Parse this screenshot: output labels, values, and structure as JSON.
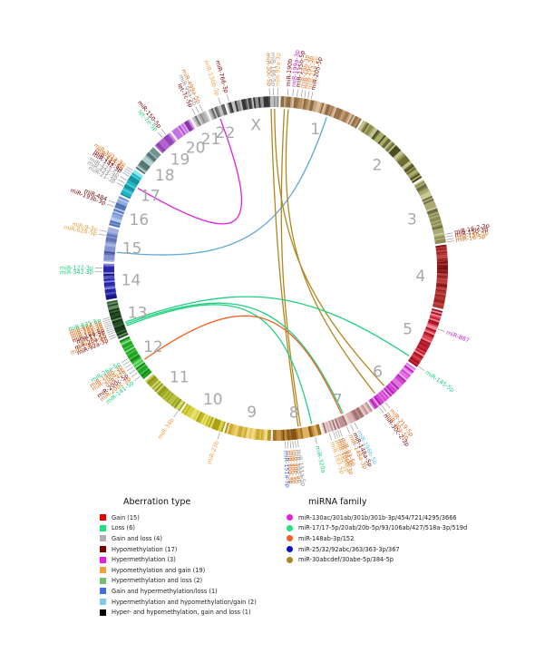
{
  "diagram": {
    "chromosomes": [
      {
        "id": "1",
        "size": 248,
        "colors": [
          "#c8a27a",
          "#a07850",
          "#8a6a40",
          "#b89060",
          "#d8c0a0"
        ]
      },
      {
        "id": "2",
        "size": 242,
        "colors": [
          "#8a8a4a",
          "#6a6a30",
          "#a8a868",
          "#c0c090",
          "#4a4a20"
        ]
      },
      {
        "id": "3",
        "size": 198,
        "colors": [
          "#a8a870",
          "#8a8a50",
          "#c8c898",
          "#6a6a40"
        ]
      },
      {
        "id": "4",
        "size": 190,
        "colors": [
          "#7a1010",
          "#9a2020",
          "#c04040",
          "#b03030"
        ]
      },
      {
        "id": "5",
        "size": 181,
        "colors": [
          "#c02030",
          "#e04050",
          "#a01020",
          "#f08090"
        ]
      },
      {
        "id": "6",
        "size": 171,
        "colors": [
          "#d040d0",
          "#e070e0",
          "#b020b0",
          "#f0a0f0"
        ]
      },
      {
        "id": "7",
        "size": 159,
        "colors": [
          "#d8b0b0",
          "#c09090",
          "#e8d0d0",
          "#a07070"
        ]
      },
      {
        "id": "8",
        "size": 145,
        "colors": [
          "#c89040",
          "#a07020",
          "#e0b060",
          "#805010"
        ]
      },
      {
        "id": "9",
        "size": 138,
        "colors": [
          "#e0c050",
          "#c8a830",
          "#f0d880",
          "#b09020"
        ]
      },
      {
        "id": "10",
        "size": 134,
        "colors": [
          "#d8d040",
          "#c0b820",
          "#e8e070",
          "#a8a010"
        ]
      },
      {
        "id": "11",
        "size": 135,
        "colors": [
          "#b8c040",
          "#a0a820",
          "#d0d870",
          "#88901a"
        ]
      },
      {
        "id": "12",
        "size": 133,
        "colors": [
          "#40c040",
          "#20a020",
          "#80e080",
          "#108010"
        ]
      },
      {
        "id": "13",
        "size": 114,
        "colors": [
          "#306030",
          "#204820",
          "#608860",
          "#103010"
        ]
      },
      {
        "id": "14",
        "size": 107,
        "colors": [
          "#2020a0",
          "#101080",
          "#5050c0",
          "#8080e0"
        ]
      },
      {
        "id": "15",
        "size": 102,
        "colors": [
          "#8090d0",
          "#6070b0",
          "#a0b0e0",
          "#4050a0"
        ]
      },
      {
        "id": "16",
        "size": 90,
        "colors": [
          "#90a8e0",
          "#7090d0",
          "#b0c8f0",
          "#5070b0"
        ]
      },
      {
        "id": "17",
        "size": 83,
        "colors": [
          "#40d0e0",
          "#20b0c0",
          "#80e8f0",
          "#10909a"
        ]
      },
      {
        "id": "18",
        "size": 80,
        "colors": [
          "#90b0b0",
          "#709090",
          "#b0d0d0",
          "#507070"
        ]
      },
      {
        "id": "19",
        "size": 59,
        "colors": [
          "#b060d0",
          "#9040b0",
          "#d090e8",
          "#702090"
        ]
      },
      {
        "id": "20",
        "size": 64,
        "colors": [
          "#c070e0",
          "#a050c0",
          "#e0a0f0",
          "#8030a0"
        ]
      },
      {
        "id": "21",
        "size": 47,
        "colors": [
          "#b0b0b0",
          "#909090",
          "#d0d0d0",
          "#707070"
        ]
      },
      {
        "id": "22",
        "size": 51,
        "colors": [
          "#a0a0a0",
          "#808080",
          "#c0c0c0",
          "#606060"
        ]
      },
      {
        "id": "X",
        "size": 156,
        "colors": [
          "#909090",
          "#505050",
          "#c0c0c0",
          "#303030"
        ]
      }
    ],
    "mirna_labels": [
      {
        "chr": "X",
        "pos": 0.06,
        "text": "miR-766-3p",
        "color": "#7a0000"
      },
      {
        "chr": "X",
        "pos": 0.83,
        "text": "miR-30c-5p",
        "color": "#e07020"
      },
      {
        "chr": "X",
        "pos": 0.9,
        "text": "miR-186-5p",
        "color": "#909090"
      },
      {
        "chr": "X",
        "pos": 0.98,
        "text": "miR-92a-3p",
        "color": "#f0a040"
      },
      {
        "chr": "1",
        "pos": 0.08,
        "text": "miR-190b",
        "color": "#7a0000"
      },
      {
        "chr": "1",
        "pos": 0.14,
        "text": "miR-199a-3p",
        "color": "#d020d0"
      },
      {
        "chr": "1",
        "pos": 0.19,
        "text": "miR-135b-5p",
        "color": "#7a0000"
      },
      {
        "chr": "1",
        "pos": 0.24,
        "text": "miR-29b-3p",
        "color": "#e07020"
      },
      {
        "chr": "1",
        "pos": 0.28,
        "text": "miR-29c-3p",
        "color": "#e07020"
      },
      {
        "chr": "1",
        "pos": 0.32,
        "text": "miR-214-5p",
        "color": "#f0a040"
      },
      {
        "chr": "1",
        "pos": 0.36,
        "text": "miR-205-5p",
        "color": "#7a0000"
      },
      {
        "chr": "3",
        "pos": 0.88,
        "text": "miR-16-2-3p",
        "color": "#7a0000"
      },
      {
        "chr": "3",
        "pos": 0.92,
        "text": "miR-15b-3p",
        "color": "#7a0000"
      },
      {
        "chr": "3",
        "pos": 0.96,
        "text": "miR-15b-5p",
        "color": "#e07020"
      },
      {
        "chr": "3",
        "pos": 0.995,
        "text": "miR-16-5p",
        "color": "#e07020"
      },
      {
        "chr": "5",
        "pos": 0.3,
        "text": "miR-887",
        "color": "#d020d0"
      },
      {
        "chr": "5",
        "pos": 0.98,
        "text": "miR-145-5p",
        "color": "#20d080"
      },
      {
        "chr": "6",
        "pos": 0.78,
        "text": "miR-219-5p",
        "color": "#e07020"
      },
      {
        "chr": "6",
        "pos": 0.86,
        "text": "miR-30a-5p",
        "color": "#e07020"
      },
      {
        "chr": "6",
        "pos": 0.91,
        "text": "miR-30c-2-3p",
        "color": "#7a0000"
      },
      {
        "chr": "7",
        "pos": 0.4,
        "text": "miR-196b-5p",
        "color": "#60c0f0"
      },
      {
        "chr": "7",
        "pos": 0.48,
        "text": "miR-148a-5p",
        "color": "#7a0000"
      },
      {
        "chr": "7",
        "pos": 0.56,
        "text": "miR-148a-3p",
        "color": "#e07020"
      },
      {
        "chr": "7",
        "pos": 0.7,
        "text": "miR-93-5p",
        "color": "#e07020"
      },
      {
        "chr": "7",
        "pos": 0.74,
        "text": "miR-93-3p",
        "color": "#e07020"
      },
      {
        "chr": "7",
        "pos": 0.78,
        "text": "miR-106b-3p",
        "color": "#e07020"
      },
      {
        "chr": "7",
        "pos": 0.82,
        "text": "miR-182-5p",
        "color": "#f0a040"
      },
      {
        "chr": "7",
        "pos": 0.9,
        "text": "miR-183-5p",
        "color": "#f0a040"
      },
      {
        "chr": "8",
        "pos": 0.14,
        "text": "miR-320a",
        "color": "#20d080"
      },
      {
        "chr": "8",
        "pos": 0.5,
        "text": "miR-151a-5p",
        "color": "#909090"
      },
      {
        "chr": "8",
        "pos": 0.55,
        "text": "miR-30d-5p",
        "color": "#909090"
      },
      {
        "chr": "8",
        "pos": 0.6,
        "text": "miR-30b-5p",
        "color": "#e07020"
      },
      {
        "chr": "8",
        "pos": 0.65,
        "text": "miR-30b-3p",
        "color": "#e07020"
      },
      {
        "chr": "8",
        "pos": 0.7,
        "text": "miR-30d-3p",
        "color": "#e07020"
      },
      {
        "chr": "8",
        "pos": 0.75,
        "text": "miR-151a-3p",
        "color": "#4060e0"
      },
      {
        "chr": "10",
        "pos": 0.05,
        "text": "miR-23b",
        "color": "#f0a040"
      },
      {
        "chr": "11",
        "pos": 0.03,
        "text": "miR-34b",
        "color": "#f0a040"
      },
      {
        "chr": "12",
        "pos": 0.1,
        "text": "miR-141-5p",
        "color": "#20d080"
      },
      {
        "chr": "12",
        "pos": 0.2,
        "text": "miR-200c-3p",
        "color": "#e07020"
      },
      {
        "chr": "12",
        "pos": 0.28,
        "text": "miR-200c-5p",
        "color": "#7a0000"
      },
      {
        "chr": "12",
        "pos": 0.36,
        "text": "miR-429",
        "color": "#e07020"
      },
      {
        "chr": "12",
        "pos": 0.43,
        "text": "miR-200a-3p",
        "color": "#e07020"
      },
      {
        "chr": "12",
        "pos": 0.5,
        "text": "miR-148b-3p",
        "color": "#e07020"
      },
      {
        "chr": "12",
        "pos": 0.57,
        "text": "miR-26a-5p",
        "color": "#20d080"
      },
      {
        "chr": "13",
        "pos": 0.08,
        "text": "miR-92a-3p",
        "color": "#7a0000"
      },
      {
        "chr": "13",
        "pos": 0.14,
        "text": "miR-19b-1-5p",
        "color": "#e07020"
      },
      {
        "chr": "13",
        "pos": 0.2,
        "text": "miR-20a-5p",
        "color": "#7a0000"
      },
      {
        "chr": "13",
        "pos": 0.25,
        "text": "miR-17-3p",
        "color": "#f0a040"
      },
      {
        "chr": "13",
        "pos": 0.3,
        "text": "miR-17-5p",
        "color": "#7a0000"
      },
      {
        "chr": "13",
        "pos": 0.35,
        "text": "miR-18a-5p",
        "color": "#7a0000"
      },
      {
        "chr": "13",
        "pos": 0.4,
        "text": "miR-19a-3p",
        "color": "#e07020"
      },
      {
        "chr": "13",
        "pos": 0.45,
        "text": "miR-20a-3p",
        "color": "#e07020"
      },
      {
        "chr": "13",
        "pos": 0.5,
        "text": "miR-19b-3p",
        "color": "#e07020"
      },
      {
        "chr": "13",
        "pos": 0.55,
        "text": "miR-624-5p",
        "color": "#e07020"
      },
      {
        "chr": "13",
        "pos": 0.6,
        "text": "miR-625-5p",
        "color": "#20d080"
      },
      {
        "chr": "14",
        "pos": 0.78,
        "text": "miR-342-3p",
        "color": "#20d080"
      },
      {
        "chr": "14",
        "pos": 0.88,
        "text": "miR-127-3p",
        "color": "#20d080"
      },
      {
        "chr": "15",
        "pos": 0.75,
        "text": "miR-628-5p",
        "color": "#f0a040"
      },
      {
        "chr": "15",
        "pos": 0.86,
        "text": "miR-9-3p",
        "color": "#f0a040"
      },
      {
        "chr": "16",
        "pos": 0.62,
        "text": "miR-193b-3p",
        "color": "#7a0000"
      },
      {
        "chr": "16",
        "pos": 0.74,
        "text": "miR-484",
        "color": "#7a0000"
      },
      {
        "chr": "17",
        "pos": 0.3,
        "text": "miR-21-3p",
        "color": "#909090"
      },
      {
        "chr": "17",
        "pos": 0.42,
        "text": "miR-423-3p",
        "color": "#909090"
      },
      {
        "chr": "17",
        "pos": 0.54,
        "text": "miR-423-5p",
        "color": "#909090"
      },
      {
        "chr": "17",
        "pos": 0.7,
        "text": "miR-142-3p",
        "color": "#7a0000"
      },
      {
        "chr": "17",
        "pos": 0.78,
        "text": "miR-142-5p",
        "color": "#7a0000"
      },
      {
        "chr": "17",
        "pos": 0.86,
        "text": "miR-454-3p",
        "color": "#e07020"
      },
      {
        "chr": "17",
        "pos": 0.94,
        "text": "miR-301a-3p",
        "color": "#e07020"
      },
      {
        "chr": "19",
        "pos": 0.55,
        "text": "let-7e-5p",
        "color": "#20d080"
      },
      {
        "chr": "19",
        "pos": 0.78,
        "text": "miR-150-5p",
        "color": "#7a0000"
      },
      {
        "chr": "21",
        "pos": 0.3,
        "text": "let-7c-5p",
        "color": "#7a0000"
      },
      {
        "chr": "21",
        "pos": 0.55,
        "text": "miR-99a-5p",
        "color": "#909090"
      },
      {
        "chr": "21",
        "pos": 0.8,
        "text": "miR-499a-5p",
        "color": "#e07020"
      },
      {
        "chr": "22",
        "pos": 0.8,
        "text": "miR-130b-3p",
        "color": "#f0a040"
      }
    ],
    "links": [
      {
        "from": [
          "22",
          0.5
        ],
        "to": [
          "17",
          0.5
        ],
        "color": "#e020e0"
      },
      {
        "from": [
          "1",
          0.6
        ],
        "to": [
          "15",
          0.3
        ],
        "color": "#60a8d8"
      },
      {
        "from": [
          "X",
          0.92
        ],
        "to": [
          "6",
          0.6
        ],
        "color": "#b08820"
      },
      {
        "from": [
          "X",
          0.85
        ],
        "to": [
          "8",
          0.45
        ],
        "color": "#b08820"
      },
      {
        "from": [
          "1",
          0.05
        ],
        "to": [
          "8",
          0.4
        ],
        "color": "#b08820"
      },
      {
        "from": [
          "1",
          0.1
        ],
        "to": [
          "6",
          0.82
        ],
        "color": "#b08820"
      },
      {
        "from": [
          "13",
          0.3
        ],
        "to": [
          "7",
          0.52
        ],
        "color": "#20d080"
      },
      {
        "from": [
          "13",
          0.25
        ],
        "to": [
          "8",
          0.15
        ],
        "color": "#20d080"
      },
      {
        "from": [
          "12",
          0.35
        ],
        "to": [
          "7",
          0.55
        ],
        "color": "#f06020"
      },
      {
        "from": [
          "13",
          0.35
        ],
        "to": [
          "5",
          0.92
        ],
        "color": "#20d080"
      }
    ]
  },
  "legend_aberration": {
    "title": "Aberration type",
    "items": [
      {
        "label": "Gain (15)",
        "color": "#e00000"
      },
      {
        "label": "Loss (6)",
        "color": "#20e080"
      },
      {
        "label": "Gain and loss (4)",
        "color": "#b0b0b0"
      },
      {
        "label": "Hypomethylation (17)",
        "color": "#7a0000"
      },
      {
        "label": "Hypermethylation (3)",
        "color": "#e020e0"
      },
      {
        "label": "Hypomethylation and gain (19)",
        "color": "#f0a040"
      },
      {
        "label": "Hypermethylation and loss (2)",
        "color": "#70c070"
      },
      {
        "label": "Gain and hypermethylation/loss (1)",
        "color": "#4070e0"
      },
      {
        "label": "Hypermethylation and hypomethylation/gain (2)",
        "color": "#80c8f0"
      },
      {
        "label": "Hyper- and hypomethylation, gain and loss (1)",
        "color": "#000000"
      }
    ]
  },
  "legend_family": {
    "title": "miRNA family",
    "items": [
      {
        "label": "miR-130ac/301ab/301b/301b-3p/454/721/4295/3666",
        "color": "#e020e0"
      },
      {
        "label": "miR-17/17-5p/20ab/20b-5p/93/106ab/427/518a-3p/519d",
        "color": "#20e080"
      },
      {
        "label": "miR-148ab-3p/152",
        "color": "#f06020"
      },
      {
        "label": "miR-25/32/92abc/363/363-3p/367",
        "color": "#1010c0"
      },
      {
        "label": "miR-30abcdef/30abe-5p/384-5p",
        "color": "#b08820"
      }
    ]
  }
}
